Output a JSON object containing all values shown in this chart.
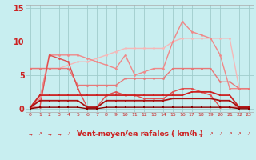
{
  "xlabel": "Vent moyen/en rafales ( km/h )",
  "background_color": "#c8eef0",
  "grid_color": "#a0cccc",
  "xlim": [
    -0.5,
    23.5
  ],
  "ylim": [
    -0.5,
    15.5
  ],
  "yticks": [
    0,
    5,
    10,
    15
  ],
  "xticks": [
    0,
    1,
    2,
    3,
    4,
    5,
    6,
    7,
    8,
    9,
    10,
    11,
    12,
    13,
    14,
    15,
    16,
    17,
    18,
    19,
    20,
    21,
    22,
    23
  ],
  "series": [
    {
      "comment": "lightest pink - top line, mostly flat around 8-10, rises to right",
      "y": [
        6.0,
        6.0,
        6.0,
        6.0,
        6.5,
        7.0,
        7.0,
        7.5,
        8.0,
        8.5,
        9.0,
        9.0,
        9.0,
        9.0,
        9.0,
        10.0,
        10.5,
        10.5,
        10.5,
        10.5,
        10.5,
        10.5,
        3.0,
        3.0
      ],
      "color": "#f5b8b8",
      "linewidth": 1.0,
      "marker": "o",
      "markersize": 2.0
    },
    {
      "comment": "light pink - second line from top, has peak at 16",
      "y": [
        0.2,
        1.5,
        8.0,
        8.0,
        8.0,
        8.0,
        7.5,
        7.0,
        6.5,
        6.0,
        8.0,
        5.0,
        5.5,
        6.0,
        6.0,
        10.0,
        13.0,
        11.5,
        11.0,
        10.5,
        8.0,
        3.0,
        3.0,
        3.0
      ],
      "color": "#f08888",
      "linewidth": 1.0,
      "marker": "o",
      "markersize": 2.0
    },
    {
      "comment": "medium pink - third line, starts ~6, dips around 7, then goes up",
      "y": [
        6.0,
        6.0,
        6.0,
        6.0,
        6.0,
        3.5,
        3.5,
        3.5,
        3.5,
        3.5,
        4.5,
        4.5,
        4.5,
        4.5,
        4.5,
        6.0,
        6.0,
        6.0,
        6.0,
        6.0,
        4.0,
        4.0,
        3.0,
        3.0
      ],
      "color": "#e87878",
      "linewidth": 1.0,
      "marker": "o",
      "markersize": 2.0
    },
    {
      "comment": "medium-dark - 4th line, dips down to ~0 at x=6, then rises slowly",
      "y": [
        0.2,
        0.2,
        8.0,
        7.5,
        7.0,
        3.0,
        0.2,
        0.2,
        2.0,
        2.5,
        2.0,
        2.0,
        1.5,
        1.5,
        1.5,
        2.5,
        3.0,
        3.0,
        2.5,
        2.0,
        0.2,
        0.2,
        0.2,
        0.2
      ],
      "color": "#e05050",
      "linewidth": 1.0,
      "marker": "o",
      "markersize": 2.0
    },
    {
      "comment": "dark red - flat around 2, small peaks at 16-18",
      "y": [
        0.2,
        2.0,
        2.0,
        2.0,
        2.0,
        2.0,
        2.0,
        2.0,
        2.0,
        2.0,
        2.0,
        2.0,
        2.0,
        2.0,
        2.0,
        2.0,
        2.0,
        2.5,
        2.5,
        2.5,
        2.0,
        2.0,
        0.2,
        0.2
      ],
      "color": "#cc2222",
      "linewidth": 1.3,
      "marker": "s",
      "markersize": 2.0
    },
    {
      "comment": "dark red - flat near 1",
      "y": [
        0.2,
        1.2,
        1.2,
        1.2,
        1.2,
        1.2,
        0.2,
        0.2,
        1.2,
        1.2,
        1.2,
        1.2,
        1.2,
        1.2,
        1.2,
        1.5,
        1.5,
        1.5,
        1.5,
        1.5,
        1.2,
        1.2,
        0.2,
        0.2
      ],
      "color": "#aa1111",
      "linewidth": 1.3,
      "marker": "s",
      "markersize": 2.0
    },
    {
      "comment": "very dark - mostly 0",
      "y": [
        0.0,
        0.2,
        0.2,
        0.2,
        0.2,
        0.2,
        0.0,
        0.0,
        0.2,
        0.2,
        0.2,
        0.2,
        0.2,
        0.2,
        0.2,
        0.2,
        0.2,
        0.2,
        0.2,
        0.2,
        0.2,
        0.2,
        0.0,
        0.0
      ],
      "color": "#880000",
      "linewidth": 1.0,
      "marker": "s",
      "markersize": 1.5
    }
  ],
  "wind_arrows": [
    "→",
    "↗",
    "→",
    "→",
    "↗",
    "↗",
    "↗",
    "→",
    "→",
    "→",
    "↗",
    "→",
    "↓",
    "↓",
    "↙",
    "↙",
    "↗",
    "↙",
    "←",
    "↗",
    "↗",
    "↗",
    "↗",
    "↗"
  ],
  "wind_arrow_color": "#cc2222"
}
